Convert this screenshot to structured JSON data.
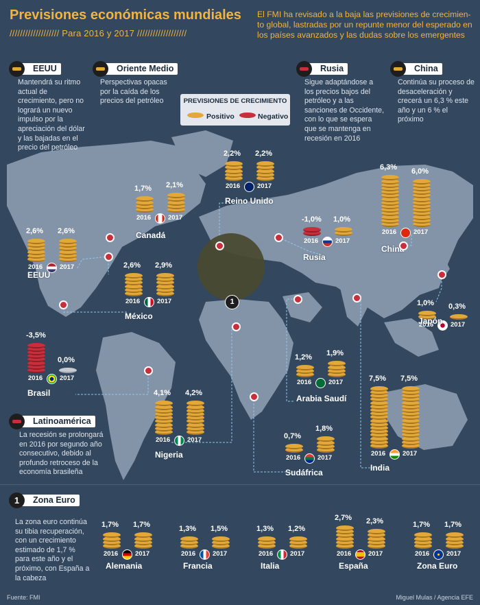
{
  "header": {
    "title": "Previsiones económicas mundiales",
    "subtitle": "/////////////////// Para 2016 y 2017 ///////////////////",
    "intro": "El FMI ha revisado a la baja las previsiones de crecimien-to global, lastradas por un repunte menor del esperado en los países avanzados y las dudas sobre los emergentes"
  },
  "legend": {
    "title": "PREVISIONES DE CRECIMIENTO",
    "positive": "Positivo",
    "negative": "Negativo"
  },
  "colors": {
    "positive": "#e2a93a",
    "negative": "#c62f3b",
    "background": "#33475e",
    "title": "#f2b441"
  },
  "regions": [
    {
      "label": "EEUU",
      "color": "#e2a93a",
      "text": "Mantendrá su ritmo actual de crecimiento, pero no logrará un nuevo impulso por la apreciación del dólar y las bajadas en el precio del petróleo"
    },
    {
      "label": "Oriente Medio",
      "color": "#e2a93a",
      "text": "Perspectivas opacas por la caída de los precios del petróleo"
    },
    {
      "label": "Rusia",
      "color": "#c62f3b",
      "text": "Sigue adaptándose a los precios bajos del petróleo y a las sanciones de Occidente, con lo que se espera que se mantenga en recesión en 2016"
    },
    {
      "label": "China",
      "color": "#e2a93a",
      "text": "Continúa su proceso de desaceleración y crecerá un 6,3 % este año y un 6 % el próximo"
    },
    {
      "label": "Latinoamérica",
      "color": "#c62f3b",
      "text": "La recesión se prolongará en 2016 por segundo año consecutivo, debido al profundo retroceso de la economía brasileña"
    }
  ],
  "zone": {
    "number": "1",
    "label": "Zona Euro",
    "text": "La zona euro continúa su tibia recuperación, con un crecimiento estimado de 1,7 % para este año y el próximo, con España a la cabeza"
  },
  "chart_data": {
    "type": "bar",
    "categories": [
      "2016",
      "2017"
    ],
    "countries": [
      {
        "name": "EEUU",
        "values": [
          2.6,
          2.6
        ],
        "labels": [
          "2,6%",
          "2,6%"
        ]
      },
      {
        "name": "Canadá",
        "values": [
          1.7,
          2.1
        ],
        "labels": [
          "1,7%",
          "2,1%"
        ]
      },
      {
        "name": "Reino Unido",
        "values": [
          2.2,
          2.2
        ],
        "labels": [
          "2,2%",
          "2,2%"
        ]
      },
      {
        "name": "México",
        "values": [
          2.6,
          2.9
        ],
        "labels": [
          "2,6%",
          "2,9%"
        ]
      },
      {
        "name": "Rusia",
        "values": [
          -1.0,
          1.0
        ],
        "labels": [
          "-1,0%",
          "1,0%"
        ]
      },
      {
        "name": "China",
        "values": [
          6.3,
          6.0
        ],
        "labels": [
          "6,3%",
          "6,0%"
        ]
      },
      {
        "name": "Japón",
        "values": [
          1.0,
          0.3
        ],
        "labels": [
          "1,0%",
          "0,3%"
        ]
      },
      {
        "name": "Brasil",
        "values": [
          -3.5,
          0.0
        ],
        "labels": [
          "-3,5%",
          "0,0%"
        ]
      },
      {
        "name": "Nigeria",
        "values": [
          4.1,
          4.2
        ],
        "labels": [
          "4,1%",
          "4,2%"
        ]
      },
      {
        "name": "Arabia Saudí",
        "values": [
          1.2,
          1.9
        ],
        "labels": [
          "1,2%",
          "1,9%"
        ]
      },
      {
        "name": "Sudáfrica",
        "values": [
          0.7,
          1.8
        ],
        "labels": [
          "0,7%",
          "1,8%"
        ]
      },
      {
        "name": "India",
        "values": [
          7.5,
          7.5
        ],
        "labels": [
          "7,5%",
          "7,5%"
        ]
      },
      {
        "name": "Alemania",
        "values": [
          1.7,
          1.7
        ],
        "labels": [
          "1,7%",
          "1,7%"
        ]
      },
      {
        "name": "Francia",
        "values": [
          1.3,
          1.5
        ],
        "labels": [
          "1,3%",
          "1,5%"
        ]
      },
      {
        "name": "Italia",
        "values": [
          1.3,
          1.2
        ],
        "labels": [
          "1,3%",
          "1,2%"
        ]
      },
      {
        "name": "España",
        "values": [
          2.7,
          2.3
        ],
        "labels": [
          "2,7%",
          "2,3%"
        ]
      },
      {
        "name": "Zona Euro",
        "values": [
          1.7,
          1.7
        ],
        "labels": [
          "1,7%",
          "1,7%"
        ]
      }
    ]
  },
  "footer": {
    "source": "Fuente: FMI",
    "credit": "Miguel Mulas / Agencia EFE"
  }
}
